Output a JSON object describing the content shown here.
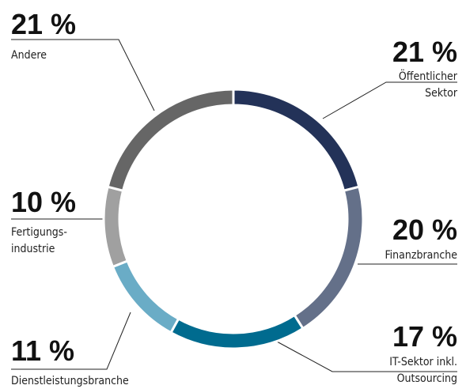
{
  "chart_data": {
    "type": "donut",
    "categories": [
      [
        "Öffentlicher",
        "Sektor"
      ],
      [
        "Finanzbranche"
      ],
      [
        "IT-Sektor inkl.",
        "Outsourcing"
      ],
      [
        "Dienstleistungsbranche"
      ],
      [
        "Fertigungs-",
        "industrie"
      ],
      [
        "Andere"
      ]
    ],
    "values": [
      21,
      20,
      17,
      11,
      10,
      21
    ],
    "value_labels": [
      "21 %",
      "20 %",
      "17 %",
      "11 %",
      "10 %",
      "21 %"
    ],
    "colors": [
      "#233258",
      "#647089",
      "#006b8f",
      "#6aacc6",
      "#a0a0a0",
      "#666666"
    ]
  }
}
